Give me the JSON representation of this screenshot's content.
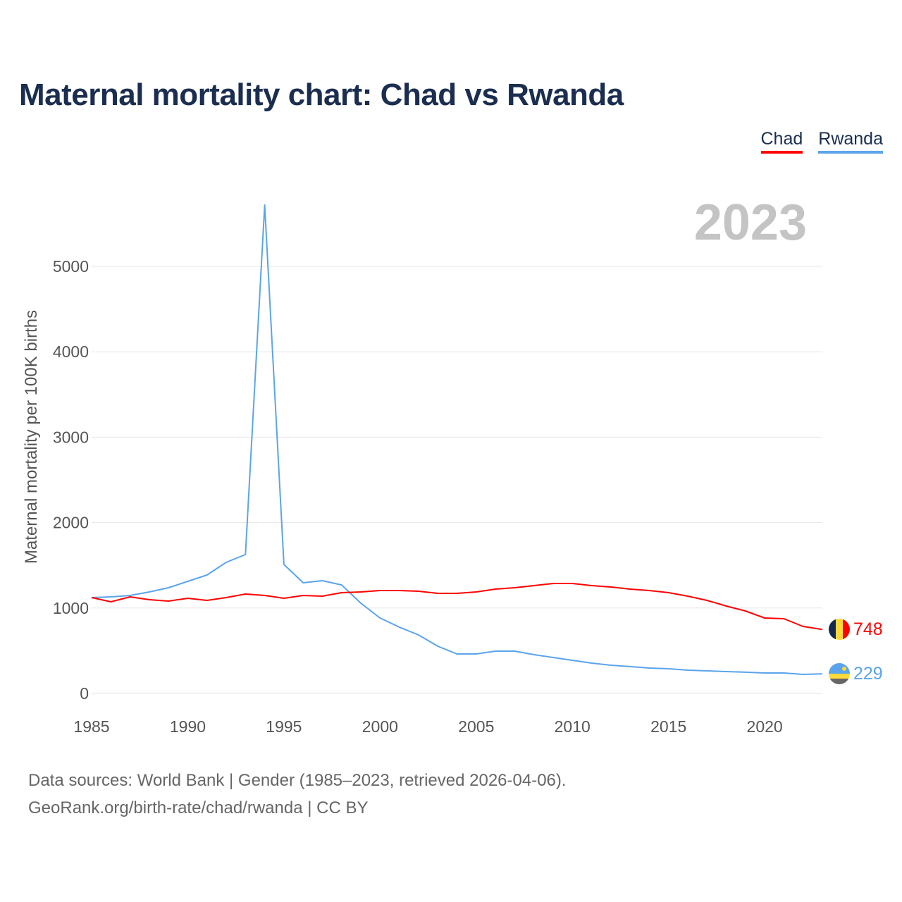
{
  "title": "Maternal mortality chart: Chad vs Rwanda",
  "year_label": "2023",
  "source_line1": "Data sources: World Bank | Gender (1985–2023, retrieved 2026-04-06).",
  "source_line2": "GeoRank.org/birth-rate/chad/rwanda | CC BY",
  "chart_data": {
    "type": "line",
    "title": "Maternal mortality chart: Chad vs Rwanda",
    "xlabel": "",
    "ylabel": "Maternal mortality per 100K births",
    "xlim": [
      1985,
      2023
    ],
    "ylim": [
      0,
      5000
    ],
    "grid": true,
    "legend_position": "top-right",
    "x_ticks": [
      "1985",
      "1990",
      "1995",
      "2000",
      "2005",
      "2010",
      "2015",
      "2020"
    ],
    "y_ticks": [
      "0",
      "1000",
      "2000",
      "3000",
      "4000",
      "5000"
    ],
    "x": [
      1985,
      1986,
      1987,
      1988,
      1989,
      1990,
      1991,
      1992,
      1993,
      1994,
      1995,
      1996,
      1997,
      1998,
      1999,
      2000,
      2001,
      2002,
      2003,
      2004,
      2005,
      2006,
      2007,
      2008,
      2009,
      2010,
      2011,
      2012,
      2013,
      2014,
      2015,
      2016,
      2017,
      2018,
      2019,
      2020,
      2021,
      2022,
      2023
    ],
    "series": [
      {
        "name": "Chad",
        "color": "#ff0000",
        "end_label": "748",
        "values": [
          1122,
          1073,
          1130,
          1097,
          1081,
          1114,
          1089,
          1122,
          1163,
          1147,
          1114,
          1147,
          1139,
          1180,
          1188,
          1205,
          1205,
          1196,
          1172,
          1172,
          1188,
          1221,
          1238,
          1262,
          1287,
          1287,
          1262,
          1246,
          1221,
          1205,
          1180,
          1139,
          1089,
          1023,
          965,
          883,
          875,
          784,
          748
        ]
      },
      {
        "name": "Rwanda",
        "color": "#5ba4ec",
        "end_label": "229",
        "values": [
          1122,
          1130,
          1147,
          1188,
          1238,
          1312,
          1386,
          1535,
          1625,
          5718,
          1510,
          1295,
          1320,
          1270,
          1056,
          883,
          776,
          685,
          553,
          462,
          462,
          495,
          495,
          454,
          421,
          388,
          355,
          330,
          314,
          297,
          289,
          272,
          264,
          256,
          248,
          239,
          239,
          223,
          229
        ]
      }
    ]
  }
}
